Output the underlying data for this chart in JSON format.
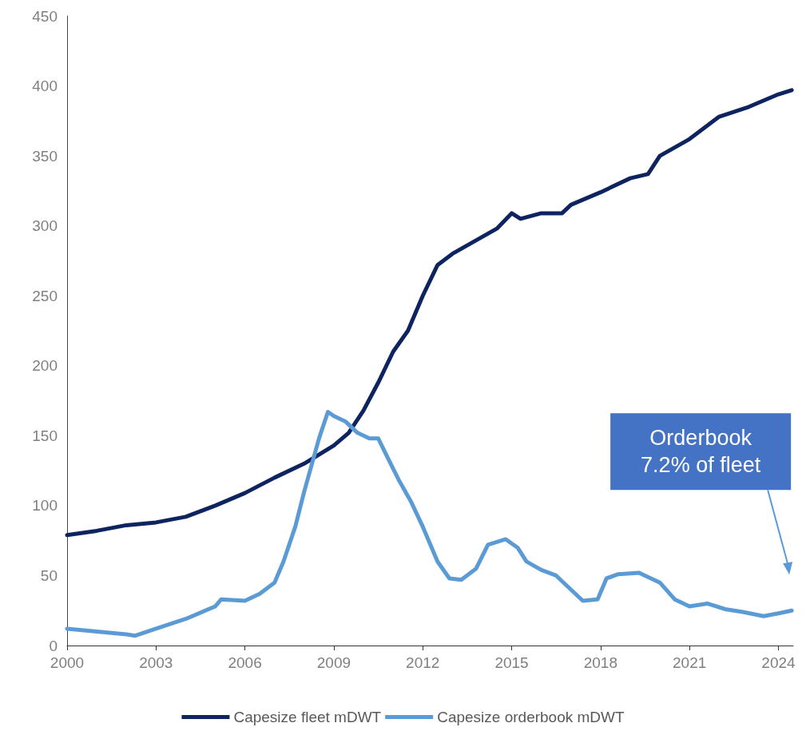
{
  "chart_data": {
    "type": "line",
    "xlim": [
      2000,
      2024.5
    ],
    "xticks": [
      2000,
      2003,
      2006,
      2009,
      2012,
      2015,
      2018,
      2021,
      2024
    ],
    "ylim": [
      0,
      450
    ],
    "yticks": [
      0,
      50,
      100,
      150,
      200,
      250,
      300,
      350,
      400,
      450
    ],
    "grid": false,
    "legend": "bottom",
    "marker": "none",
    "line_style": "solid",
    "annotations": [
      "Orderbook\n7.2% of fleet"
    ],
    "series": [
      {
        "name": "Capesize fleet mDWT",
        "color": "#0d2460",
        "x": [
          2000,
          2001,
          2002,
          2003,
          2004,
          2005,
          2006,
          2007,
          2008,
          2009,
          2009.5,
          2010,
          2010.5,
          2011,
          2011.5,
          2012,
          2012.5,
          2013,
          2014,
          2014.5,
          2015,
          2015.3,
          2016,
          2016.7,
          2017,
          2018,
          2019,
          2019.6,
          2020,
          2021,
          2022,
          2023,
          2024,
          2024.45
        ],
        "values": [
          79,
          82,
          86,
          88,
          92,
          100,
          109,
          120,
          130,
          143,
          152,
          168,
          188,
          210,
          225,
          250,
          272,
          280,
          292,
          298,
          309,
          305,
          309,
          309,
          315,
          324,
          334,
          337,
          350,
          362,
          378,
          385,
          394,
          397
        ]
      },
      {
        "name": "Capesize orderbook mDWT",
        "color": "#5b9bd5",
        "x": [
          2000,
          2001,
          2002,
          2002.3,
          2003,
          2004,
          2005,
          2005.2,
          2006,
          2006.5,
          2007,
          2007.3,
          2007.7,
          2008,
          2008.5,
          2008.8,
          2009,
          2009.4,
          2009.8,
          2010.2,
          2010.5,
          2010.8,
          2011.2,
          2011.6,
          2012,
          2012.5,
          2012.9,
          2013.3,
          2013.8,
          2014.2,
          2014.8,
          2015.2,
          2015.5,
          2016,
          2016.5,
          2017,
          2017.4,
          2017.9,
          2018.2,
          2018.6,
          2019.3,
          2020,
          2020.5,
          2021,
          2021.6,
          2022.2,
          2022.8,
          2023.5,
          2024,
          2024.45
        ],
        "values": [
          12,
          10,
          8,
          7,
          12,
          19,
          28,
          33,
          32,
          37,
          45,
          60,
          85,
          110,
          148,
          167,
          164,
          160,
          152,
          148,
          148,
          135,
          118,
          103,
          85,
          60,
          48,
          47,
          55,
          72,
          76,
          70,
          60,
          54,
          50,
          40,
          32,
          33,
          48,
          51,
          52,
          45,
          33,
          28,
          30,
          26,
          24,
          21,
          23,
          25
        ]
      }
    ]
  }
}
